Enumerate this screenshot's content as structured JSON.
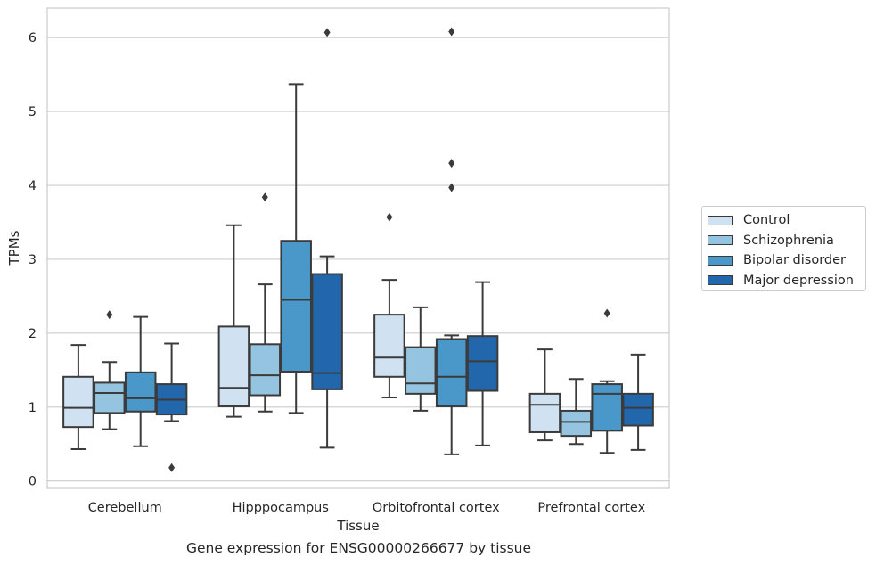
{
  "caption": "Gene expression for ENSG00000266677 by tissue",
  "chart_data": {
    "type": "box",
    "xlabel": "Tissue",
    "ylabel": "TPMs",
    "ylim": [
      -0.1,
      6.4
    ],
    "yticks": [
      0,
      1,
      2,
      3,
      4,
      5,
      6
    ],
    "grid": "horizontal",
    "legend_position": "right",
    "categories": [
      "Cerebellum",
      "Hipppocampus",
      "Orbitofrontal cortex",
      "Prefrontal cortex"
    ],
    "series": [
      {
        "name": "Control",
        "color": "#d0e1f2",
        "boxes": [
          {
            "whisker_low": 0.43,
            "q1": 0.73,
            "median": 0.99,
            "q3": 1.41,
            "whisker_high": 1.84,
            "outliers": []
          },
          {
            "whisker_low": 0.87,
            "q1": 1.01,
            "median": 1.26,
            "q3": 2.09,
            "whisker_high": 3.46,
            "outliers": []
          },
          {
            "whisker_low": 1.13,
            "q1": 1.41,
            "median": 1.67,
            "q3": 2.25,
            "whisker_high": 2.72,
            "outliers": [
              3.57
            ]
          },
          {
            "whisker_low": 0.55,
            "q1": 0.66,
            "median": 1.03,
            "q3": 1.18,
            "whisker_high": 1.78,
            "outliers": []
          }
        ]
      },
      {
        "name": "Schizophrenia",
        "color": "#94c4df",
        "boxes": [
          {
            "whisker_low": 0.7,
            "q1": 0.92,
            "median": 1.19,
            "q3": 1.33,
            "whisker_high": 1.61,
            "outliers": [
              2.25
            ]
          },
          {
            "whisker_low": 0.94,
            "q1": 1.16,
            "median": 1.43,
            "q3": 1.85,
            "whisker_high": 2.66,
            "outliers": [
              3.84
            ]
          },
          {
            "whisker_low": 0.95,
            "q1": 1.18,
            "median": 1.32,
            "q3": 1.81,
            "whisker_high": 2.35,
            "outliers": []
          },
          {
            "whisker_low": 0.5,
            "q1": 0.61,
            "median": 0.8,
            "q3": 0.95,
            "whisker_high": 1.38,
            "outliers": []
          }
        ]
      },
      {
        "name": "Bipolar disorder",
        "color": "#4a98c9",
        "boxes": [
          {
            "whisker_low": 0.47,
            "q1": 0.94,
            "median": 1.12,
            "q3": 1.47,
            "whisker_high": 2.22,
            "outliers": []
          },
          {
            "whisker_low": 0.92,
            "q1": 1.48,
            "median": 2.45,
            "q3": 3.25,
            "whisker_high": 5.37,
            "outliers": []
          },
          {
            "whisker_low": 0.36,
            "q1": 1.01,
            "median": 1.41,
            "q3": 1.92,
            "whisker_high": 1.97,
            "outliers": [
              3.97,
              4.3,
              6.08
            ]
          },
          {
            "whisker_low": 0.38,
            "q1": 0.68,
            "median": 1.18,
            "q3": 1.31,
            "whisker_high": 1.35,
            "outliers": [
              2.27
            ]
          }
        ]
      },
      {
        "name": "Major depression",
        "color": "#2266ac",
        "boxes": [
          {
            "whisker_low": 0.81,
            "q1": 0.9,
            "median": 1.1,
            "q3": 1.31,
            "whisker_high": 1.86,
            "outliers": [
              0.18
            ]
          },
          {
            "whisker_low": 0.45,
            "q1": 1.24,
            "median": 1.46,
            "q3": 2.8,
            "whisker_high": 3.04,
            "outliers": [
              6.07
            ]
          },
          {
            "whisker_low": 0.48,
            "q1": 1.22,
            "median": 1.62,
            "q3": 1.96,
            "whisker_high": 2.69,
            "outliers": []
          },
          {
            "whisker_low": 0.42,
            "q1": 0.75,
            "median": 0.99,
            "q3": 1.18,
            "whisker_high": 1.71,
            "outliers": []
          }
        ]
      }
    ]
  }
}
